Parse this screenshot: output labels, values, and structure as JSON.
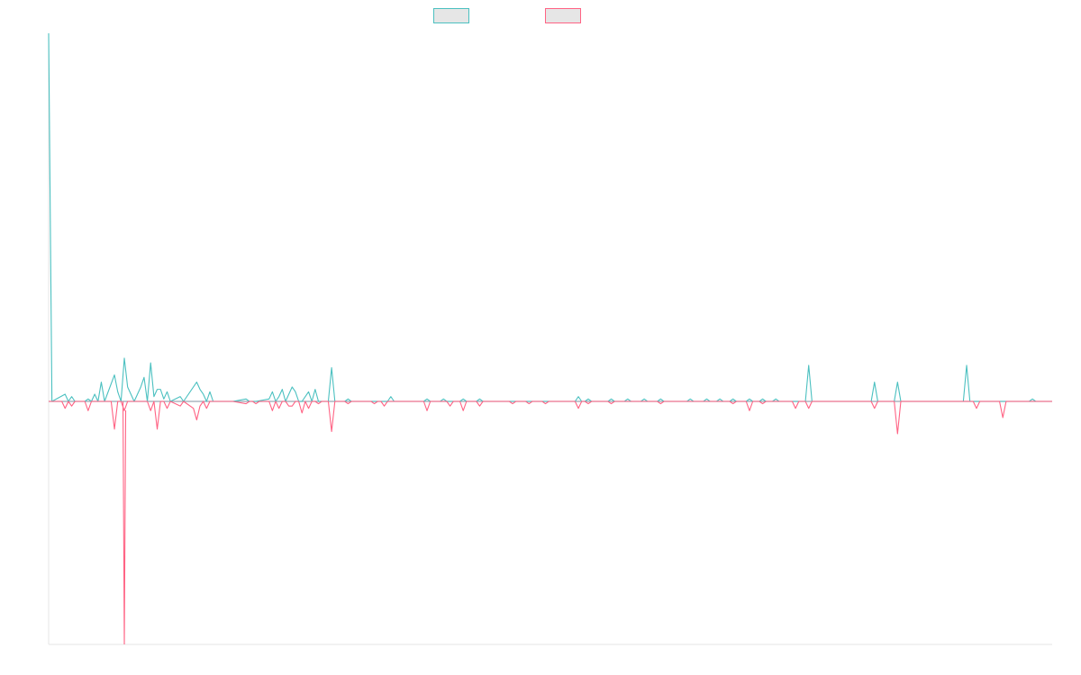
{
  "chart_data": {
    "type": "line",
    "title": "",
    "xlabel": "",
    "ylabel": "",
    "legend": {
      "placement": "top-center"
    },
    "grid": false,
    "x_count": 305,
    "ylim": [
      -105,
      153
    ],
    "series": [
      {
        "color": "#4bc0c0",
        "fill": "#e6e6e6",
        "points": [
          [
            0,
            153
          ],
          [
            1,
            0
          ],
          [
            5,
            3
          ],
          [
            6,
            0
          ],
          [
            7,
            2
          ],
          [
            8,
            0
          ],
          [
            11,
            0
          ],
          [
            12,
            1
          ],
          [
            13,
            0
          ],
          [
            14,
            3
          ],
          [
            15,
            0
          ],
          [
            16,
            8
          ],
          [
            17,
            0
          ],
          [
            20,
            11
          ],
          [
            21,
            4
          ],
          [
            22,
            0
          ],
          [
            23,
            18
          ],
          [
            24,
            6
          ],
          [
            25,
            3
          ],
          [
            26,
            0
          ],
          [
            28,
            6
          ],
          [
            29,
            10
          ],
          [
            30,
            0
          ],
          [
            31,
            16
          ],
          [
            32,
            2
          ],
          [
            33,
            5
          ],
          [
            34,
            5
          ],
          [
            35,
            1
          ],
          [
            36,
            4
          ],
          [
            37,
            0
          ],
          [
            40,
            2
          ],
          [
            41,
            0
          ],
          [
            45,
            8
          ],
          [
            46,
            5
          ],
          [
            47,
            3
          ],
          [
            48,
            0
          ],
          [
            49,
            4
          ],
          [
            50,
            0
          ],
          [
            55,
            0
          ],
          [
            56,
            0
          ],
          [
            60,
            1
          ],
          [
            61,
            0
          ],
          [
            62,
            0
          ],
          [
            63,
            0
          ],
          [
            67,
            1
          ],
          [
            68,
            4
          ],
          [
            69,
            0
          ],
          [
            70,
            2
          ],
          [
            71,
            5
          ],
          [
            72,
            0
          ],
          [
            73,
            3
          ],
          [
            74,
            6
          ],
          [
            75,
            4
          ],
          [
            76,
            0
          ],
          [
            77,
            0
          ],
          [
            78,
            2
          ],
          [
            79,
            4
          ],
          [
            80,
            0
          ],
          [
            81,
            5
          ],
          [
            82,
            0
          ],
          [
            85,
            0
          ],
          [
            86,
            14
          ],
          [
            87,
            0
          ],
          [
            90,
            0
          ],
          [
            91,
            1
          ],
          [
            92,
            0
          ],
          [
            98,
            0
          ],
          [
            100,
            0
          ],
          [
            101,
            0
          ],
          [
            102,
            0
          ],
          [
            103,
            0
          ],
          [
            104,
            2
          ],
          [
            105,
            0
          ],
          [
            108,
            0
          ],
          [
            109,
            0
          ],
          [
            114,
            0
          ],
          [
            115,
            1
          ],
          [
            116,
            0
          ],
          [
            119,
            0
          ],
          [
            120,
            1
          ],
          [
            121,
            0
          ],
          [
            125,
            0
          ],
          [
            126,
            1
          ],
          [
            127,
            0
          ],
          [
            130,
            0
          ],
          [
            131,
            1
          ],
          [
            132,
            0
          ],
          [
            140,
            0
          ],
          [
            141,
            0
          ],
          [
            145,
            0
          ],
          [
            146,
            0
          ],
          [
            150,
            0
          ],
          [
            151,
            0
          ],
          [
            160,
            0
          ],
          [
            161,
            2
          ],
          [
            162,
            0
          ],
          [
            163,
            0
          ],
          [
            164,
            1
          ],
          [
            165,
            0
          ],
          [
            170,
            0
          ],
          [
            171,
            1
          ],
          [
            172,
            0
          ],
          [
            175,
            0
          ],
          [
            176,
            1
          ],
          [
            177,
            0
          ],
          [
            180,
            0
          ],
          [
            181,
            1
          ],
          [
            182,
            0
          ],
          [
            185,
            0
          ],
          [
            186,
            1
          ],
          [
            187,
            0
          ],
          [
            190,
            0
          ],
          [
            191,
            0
          ],
          [
            194,
            0
          ],
          [
            195,
            1
          ],
          [
            196,
            0
          ],
          [
            199,
            0
          ],
          [
            200,
            1
          ],
          [
            201,
            0
          ],
          [
            203,
            0
          ],
          [
            204,
            1
          ],
          [
            205,
            0
          ],
          [
            207,
            0
          ],
          [
            208,
            1
          ],
          [
            209,
            0
          ],
          [
            212,
            0
          ],
          [
            213,
            1
          ],
          [
            214,
            0
          ],
          [
            216,
            0
          ],
          [
            217,
            1
          ],
          [
            218,
            0
          ],
          [
            220,
            0
          ],
          [
            221,
            1
          ],
          [
            222,
            0
          ],
          [
            226,
            0
          ],
          [
            227,
            0
          ],
          [
            230,
            0
          ],
          [
            231,
            15
          ],
          [
            232,
            0
          ],
          [
            250,
            0
          ],
          [
            251,
            8
          ],
          [
            252,
            0
          ],
          [
            257,
            0
          ],
          [
            258,
            8
          ],
          [
            259,
            0
          ],
          [
            278,
            0
          ],
          [
            279,
            15
          ],
          [
            280,
            0
          ],
          [
            283,
            0
          ],
          [
            284,
            0
          ],
          [
            290,
            0
          ],
          [
            291,
            0
          ],
          [
            298,
            0
          ],
          [
            299,
            1
          ],
          [
            300,
            0
          ],
          [
            305,
            0
          ]
        ]
      },
      {
        "color": "#ff6384",
        "fill": "#e6e6e6",
        "points": [
          [
            0,
            0
          ],
          [
            4,
            0
          ],
          [
            5,
            -3
          ],
          [
            6,
            0
          ],
          [
            7,
            -2
          ],
          [
            8,
            0
          ],
          [
            11,
            0
          ],
          [
            12,
            -4
          ],
          [
            13,
            0
          ],
          [
            19,
            0
          ],
          [
            20,
            -12
          ],
          [
            21,
            0
          ],
          [
            22,
            0
          ],
          [
            23,
            -4
          ],
          [
            24,
            0
          ],
          [
            25,
            0
          ],
          [
            26,
            0
          ],
          [
            27,
            0
          ],
          [
            28,
            0
          ],
          [
            29,
            0
          ],
          [
            30,
            0
          ],
          [
            31,
            -4
          ],
          [
            32,
            0
          ],
          [
            33,
            -12
          ],
          [
            34,
            0
          ],
          [
            35,
            0
          ],
          [
            36,
            -3
          ],
          [
            37,
            0
          ],
          [
            40,
            -2
          ],
          [
            41,
            0
          ],
          [
            44,
            -3
          ],
          [
            45,
            -8
          ],
          [
            46,
            -2
          ],
          [
            47,
            0
          ],
          [
            48,
            -3
          ],
          [
            49,
            0
          ],
          [
            50,
            0
          ],
          [
            55,
            0
          ],
          [
            56,
            0
          ],
          [
            60,
            -1
          ],
          [
            61,
            0
          ],
          [
            62,
            0
          ],
          [
            63,
            -1
          ],
          [
            64,
            0
          ],
          [
            67,
            0
          ],
          [
            68,
            -4
          ],
          [
            69,
            0
          ],
          [
            70,
            -3
          ],
          [
            71,
            0
          ],
          [
            72,
            0
          ],
          [
            73,
            -2
          ],
          [
            74,
            -2
          ],
          [
            75,
            0
          ],
          [
            76,
            0
          ],
          [
            77,
            -5
          ],
          [
            78,
            0
          ],
          [
            79,
            -3
          ],
          [
            80,
            0
          ],
          [
            81,
            0
          ],
          [
            82,
            -1
          ],
          [
            83,
            0
          ],
          [
            85,
            0
          ],
          [
            86,
            -13
          ],
          [
            87,
            0
          ],
          [
            90,
            0
          ],
          [
            91,
            -1
          ],
          [
            92,
            0
          ],
          [
            98,
            0
          ],
          [
            99,
            -1
          ],
          [
            100,
            0
          ],
          [
            101,
            0
          ],
          [
            102,
            -2
          ],
          [
            103,
            0
          ],
          [
            104,
            0
          ],
          [
            105,
            0
          ],
          [
            108,
            0
          ],
          [
            109,
            0
          ],
          [
            114,
            0
          ],
          [
            115,
            -4
          ],
          [
            116,
            0
          ],
          [
            119,
            0
          ],
          [
            120,
            0
          ],
          [
            121,
            0
          ],
          [
            122,
            -2
          ],
          [
            123,
            0
          ],
          [
            125,
            0
          ],
          [
            126,
            -4
          ],
          [
            127,
            0
          ],
          [
            130,
            0
          ],
          [
            131,
            -2
          ],
          [
            132,
            0
          ],
          [
            140,
            0
          ],
          [
            141,
            -1
          ],
          [
            142,
            0
          ],
          [
            145,
            0
          ],
          [
            146,
            -1
          ],
          [
            147,
            0
          ],
          [
            150,
            0
          ],
          [
            151,
            -1
          ],
          [
            152,
            0
          ],
          [
            160,
            0
          ],
          [
            161,
            -3
          ],
          [
            162,
            0
          ],
          [
            163,
            0
          ],
          [
            164,
            -1
          ],
          [
            165,
            0
          ],
          [
            170,
            0
          ],
          [
            171,
            -1
          ],
          [
            172,
            0
          ],
          [
            175,
            0
          ],
          [
            176,
            0
          ],
          [
            177,
            0
          ],
          [
            180,
            0
          ],
          [
            181,
            0
          ],
          [
            182,
            0
          ],
          [
            185,
            0
          ],
          [
            186,
            -1
          ],
          [
            187,
            0
          ],
          [
            190,
            0
          ],
          [
            191,
            0
          ],
          [
            194,
            0
          ],
          [
            195,
            0
          ],
          [
            196,
            0
          ],
          [
            199,
            0
          ],
          [
            200,
            0
          ],
          [
            201,
            0
          ],
          [
            203,
            0
          ],
          [
            204,
            0
          ],
          [
            205,
            0
          ],
          [
            207,
            0
          ],
          [
            208,
            -1
          ],
          [
            209,
            0
          ],
          [
            212,
            0
          ],
          [
            213,
            -4
          ],
          [
            214,
            0
          ],
          [
            216,
            0
          ],
          [
            217,
            -1
          ],
          [
            218,
            0
          ],
          [
            220,
            0
          ],
          [
            221,
            0
          ],
          [
            222,
            0
          ],
          [
            226,
            0
          ],
          [
            227,
            -3
          ],
          [
            228,
            0
          ],
          [
            230,
            0
          ],
          [
            231,
            -3
          ],
          [
            232,
            0
          ],
          [
            250,
            0
          ],
          [
            251,
            -3
          ],
          [
            252,
            0
          ],
          [
            257,
            0
          ],
          [
            258,
            -14
          ],
          [
            259,
            0
          ],
          [
            281,
            0
          ],
          [
            282,
            -3
          ],
          [
            283,
            0
          ],
          [
            289,
            0
          ],
          [
            290,
            -7
          ],
          [
            291,
            0
          ],
          [
            305,
            0
          ]
        ]
      }
    ],
    "spike": {
      "series": 1,
      "x": 23,
      "y": -105
    }
  }
}
